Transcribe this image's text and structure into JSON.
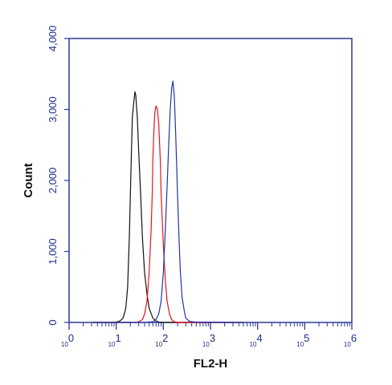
{
  "chart_data": {
    "type": "line",
    "xlabel": "FL2-H",
    "ylabel": "Count",
    "x_scale": "log",
    "xlim": [
      1,
      1000000
    ],
    "ylim": [
      0,
      4000
    ],
    "y_ticks": [
      {
        "value": 0,
        "label": "0"
      },
      {
        "value": 1000,
        "label": "1,000"
      },
      {
        "value": 2000,
        "label": "2,000"
      },
      {
        "value": 3000,
        "label": "3,000"
      },
      {
        "value": 4000,
        "label": "4,000"
      }
    ],
    "x_ticks": [
      {
        "value": 1,
        "base": "10",
        "exp": "0"
      },
      {
        "value": 10,
        "base": "10",
        "exp": "1"
      },
      {
        "value": 100,
        "base": "10",
        "exp": "2"
      },
      {
        "value": 1000,
        "base": "10",
        "exp": "3"
      },
      {
        "value": 10000,
        "base": "10",
        "exp": "4"
      },
      {
        "value": 100000,
        "base": "10",
        "exp": "5"
      },
      {
        "value": 1000000,
        "base": "10",
        "exp": "6"
      }
    ],
    "grid": false,
    "frame_color": "#2a3a9a",
    "series": [
      {
        "color": "#111111",
        "x": [
          3.2,
          5,
          8,
          10,
          12,
          14,
          16,
          17.5,
          19,
          20,
          21,
          22,
          24,
          25,
          26,
          28,
          30,
          33,
          36,
          40,
          45,
          50,
          60,
          70,
          80,
          100,
          150,
          300,
          1000,
          5000
        ],
        "y": [
          0,
          0,
          0,
          5,
          20,
          60,
          200,
          500,
          1200,
          1800,
          2400,
          2900,
          3150,
          3250,
          3200,
          2900,
          2400,
          1800,
          1200,
          700,
          400,
          200,
          60,
          20,
          5,
          0,
          0,
          0,
          0,
          0
        ]
      },
      {
        "color": "#e8131b",
        "x": [
          3.2,
          10,
          25,
          30,
          36,
          40,
          45,
          50,
          55,
          58,
          60,
          63,
          66,
          70,
          75,
          80,
          86,
          90,
          100,
          110,
          120,
          135,
          150,
          170,
          200,
          300,
          1000,
          5000
        ],
        "y": [
          0,
          0,
          0,
          10,
          40,
          120,
          300,
          700,
          1300,
          1800,
          2300,
          2700,
          2950,
          3050,
          3000,
          2800,
          2300,
          1800,
          1100,
          600,
          300,
          120,
          40,
          10,
          0,
          0,
          0,
          0
        ]
      },
      {
        "color": "#2234a8",
        "x": [
          3.2,
          10,
          40,
          60,
          70,
          80,
          90,
          100,
          110,
          120,
          130,
          140,
          150,
          160,
          170,
          180,
          190,
          200,
          215,
          230,
          250,
          280,
          300,
          350,
          400,
          500,
          700,
          1000,
          2000,
          5000
        ],
        "y": [
          0,
          0,
          0,
          10,
          40,
          120,
          300,
          700,
          1300,
          1900,
          2500,
          3000,
          3300,
          3400,
          3200,
          2800,
          2300,
          1800,
          1200,
          700,
          350,
          150,
          60,
          20,
          10,
          5,
          5,
          5,
          0,
          0
        ]
      }
    ]
  }
}
